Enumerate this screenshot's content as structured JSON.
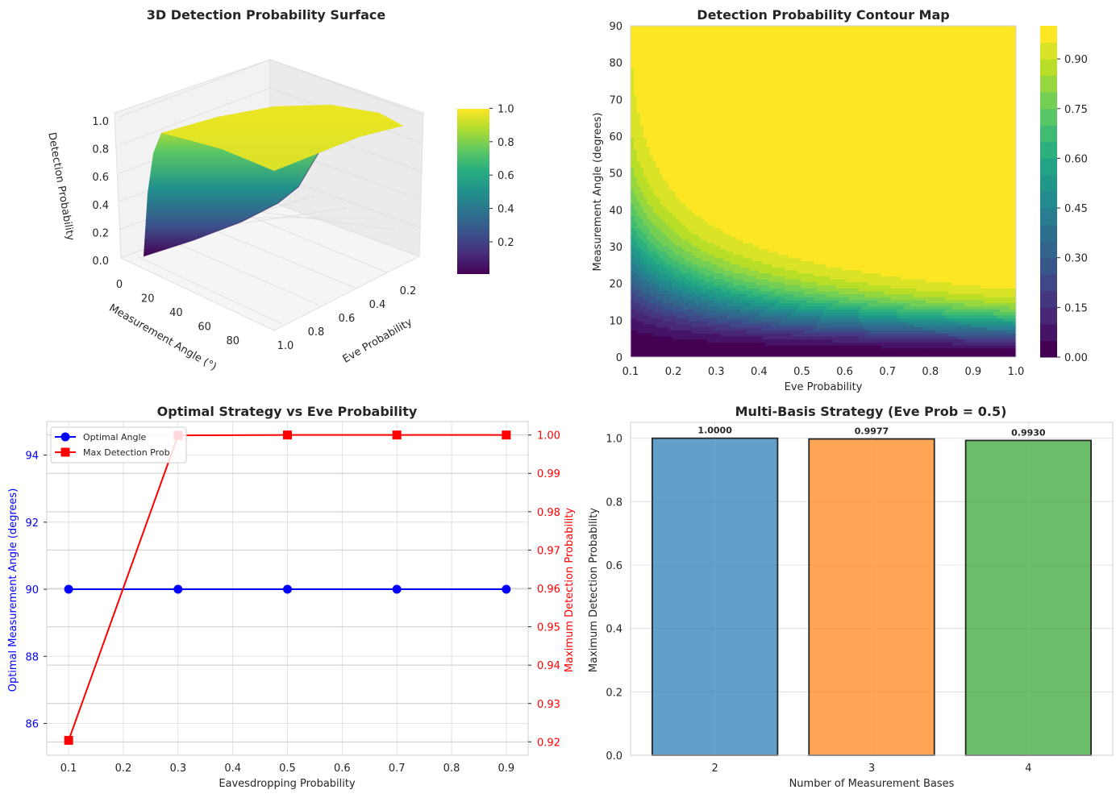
{
  "chart_data": [
    {
      "type": "surface",
      "title": "3D Detection Probability Surface",
      "xlabel": "Measurement Angle (°)",
      "ylabel": "Eve Probability",
      "zlabel": "Detection Probability",
      "x_ticks": [
        "0",
        "20",
        "40",
        "60",
        "80"
      ],
      "y_ticks": [
        "0.2",
        "0.4",
        "0.6",
        "0.8",
        "1.0"
      ],
      "z_ticks": [
        "0.0",
        "0.2",
        "0.4",
        "0.6",
        "0.8",
        "1.0"
      ],
      "colorbar_ticks": [
        "0.2",
        "0.4",
        "0.6",
        "0.8",
        "1.0"
      ],
      "x_range": [
        0,
        90
      ],
      "y_range": [
        0.1,
        1.0
      ],
      "z_range": [
        0,
        1
      ],
      "colormap": "viridis"
    },
    {
      "type": "contour",
      "title": "Detection Probability Contour Map",
      "xlabel": "Eve Probability",
      "ylabel": "Measurement Angle (degrees)",
      "x_ticks": [
        "0.1",
        "0.2",
        "0.3",
        "0.4",
        "0.5",
        "0.6",
        "0.7",
        "0.8",
        "0.9",
        "1.0"
      ],
      "y_ticks": [
        "0",
        "10",
        "20",
        "30",
        "40",
        "50",
        "60",
        "70",
        "80",
        "90"
      ],
      "xlim": [
        0.1,
        1.0
      ],
      "ylim": [
        0,
        90
      ],
      "colorbar_ticks": [
        "0.00",
        "0.15",
        "0.30",
        "0.45",
        "0.60",
        "0.75",
        "0.90"
      ],
      "levels": 20,
      "colormap": "viridis"
    },
    {
      "type": "line",
      "title": "Optimal Strategy vs Eve Probability",
      "xlabel": "Eavesdropping Probability",
      "ylabel": "Optimal Measurement Angle (degrees)",
      "ylabel_right": "Maximum Detection Probability",
      "x": [
        0.1,
        0.3,
        0.5,
        0.7,
        0.9
      ],
      "x_ticks": [
        "0.1",
        "0.2",
        "0.3",
        "0.4",
        "0.5",
        "0.6",
        "0.7",
        "0.8",
        "0.9"
      ],
      "xlim": [
        0.06,
        0.94
      ],
      "ylim_left": [
        85.05,
        95.0
      ],
      "ylim_right": [
        0.9165,
        1.0035
      ],
      "y_ticks_left": [
        "86",
        "88",
        "90",
        "92",
        "94"
      ],
      "y_ticks_right": [
        "0.92",
        "0.93",
        "0.94",
        "0.95",
        "0.96",
        "0.97",
        "0.98",
        "0.99",
        "1.00"
      ],
      "series": [
        {
          "name": "Optimal Angle",
          "values": [
            90,
            90,
            90,
            90,
            90
          ],
          "color": "#0000ff",
          "marker": "circle",
          "axis": "left"
        },
        {
          "name": "Max Detection Prob",
          "values": [
            0.9204,
            0.9999,
            1.0,
            1.0,
            1.0
          ],
          "color": "#ff0000",
          "marker": "square",
          "axis": "right"
        }
      ]
    },
    {
      "type": "bar",
      "title": "Multi-Basis Strategy (Eve Prob = 0.5)",
      "xlabel": "Number of Measurement Bases",
      "ylabel": "Maximum Detection Probability",
      "categories": [
        "2",
        "3",
        "4"
      ],
      "values": [
        1.0,
        0.9977,
        0.993
      ],
      "value_labels": [
        "1.0000",
        "0.9977",
        "0.9930"
      ],
      "colors": [
        "#1f77b4",
        "#ff7f0e",
        "#2ca02c"
      ],
      "ylim": [
        0,
        1.05
      ],
      "y_ticks": [
        "0.0",
        "0.2",
        "0.4",
        "0.6",
        "0.8",
        "1.0"
      ]
    }
  ]
}
